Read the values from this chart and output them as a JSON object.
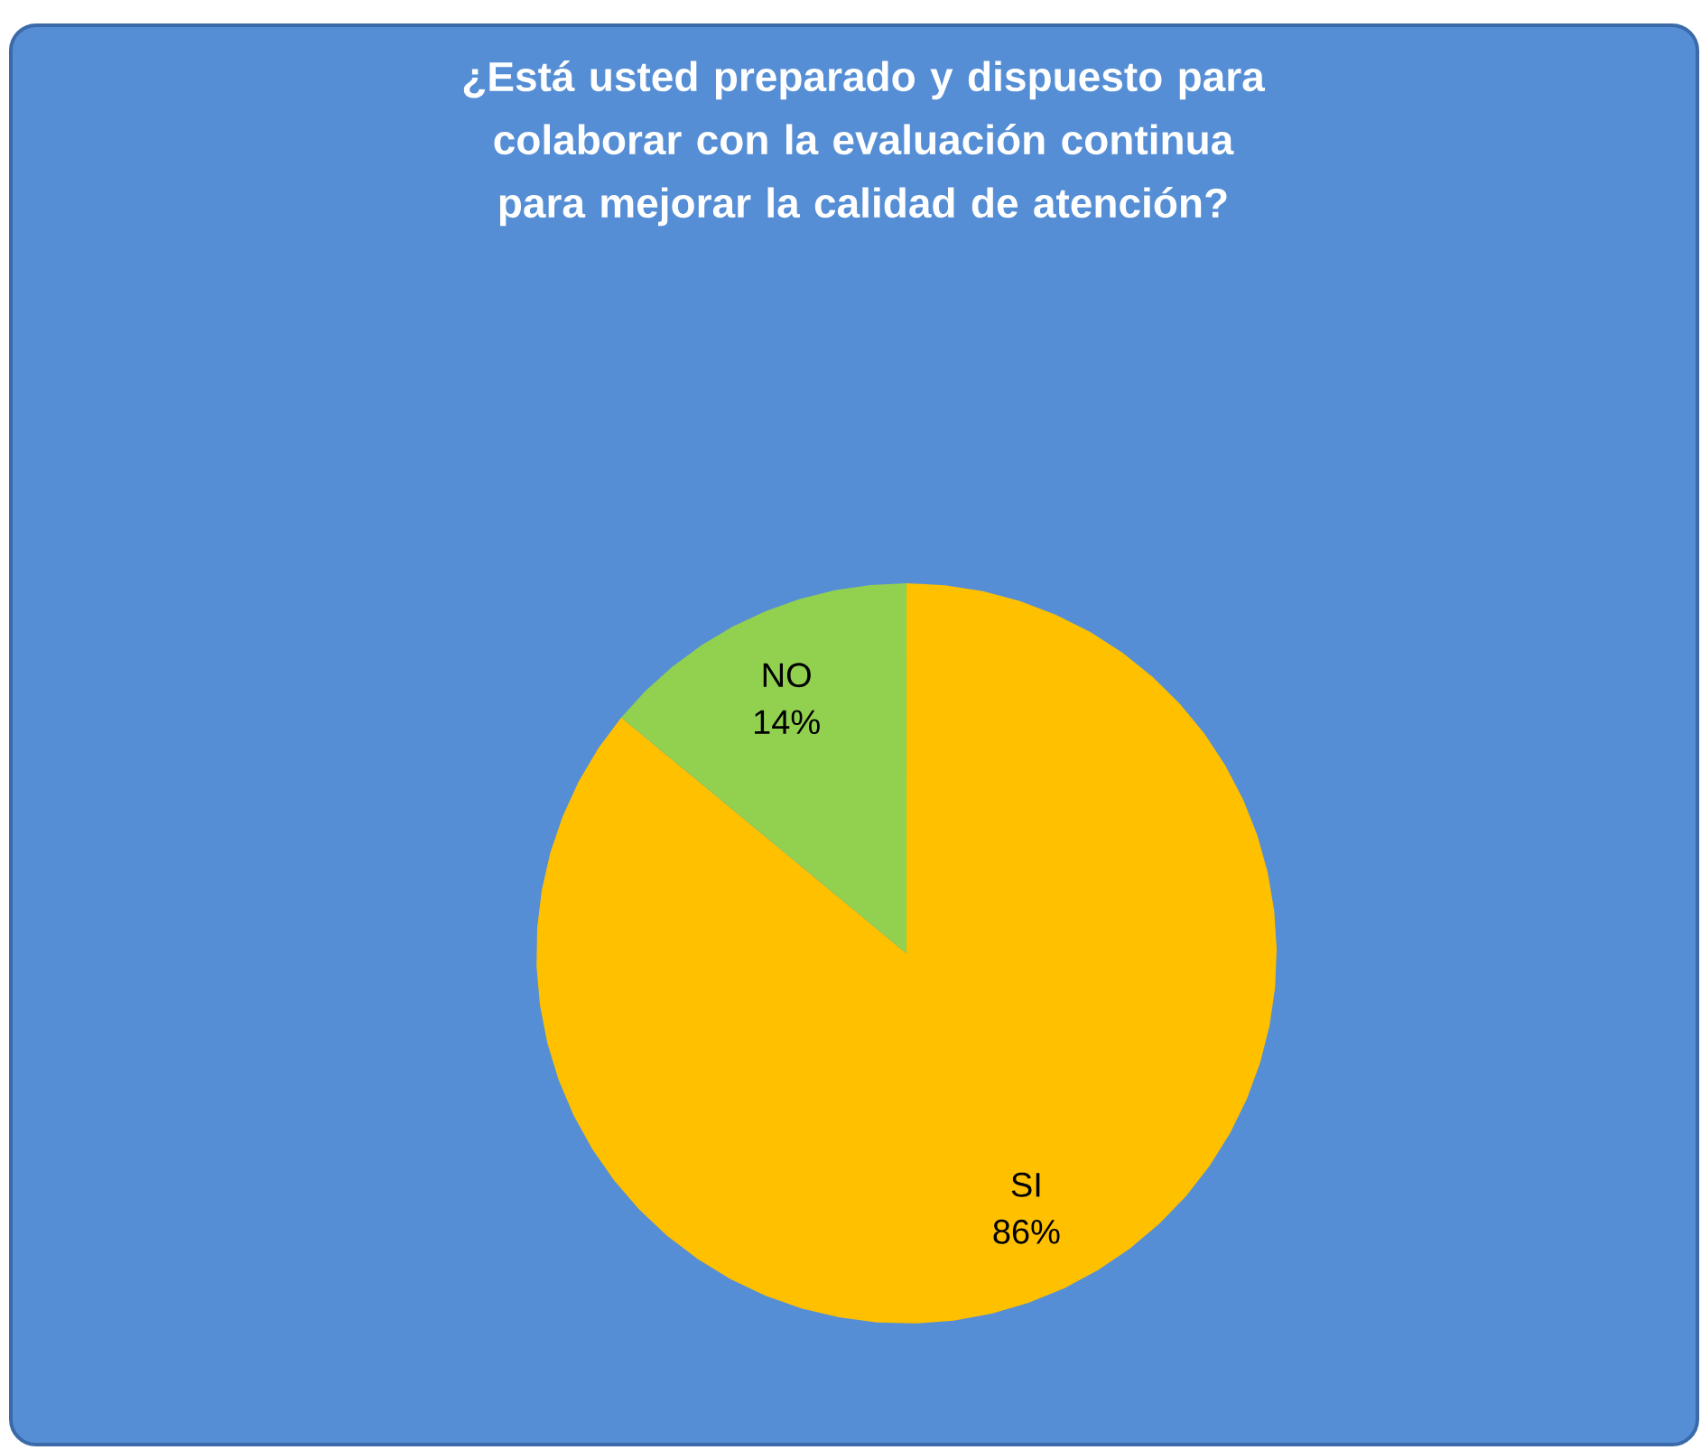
{
  "chart_data": {
    "type": "pie",
    "title": "¿Está usted preparado y dispuesto para colaborar con la evaluación continua para mejorar la calidad de atención?",
    "categories": [
      "SI",
      "NO"
    ],
    "values": [
      86,
      14
    ],
    "colors": [
      "#ffc000",
      "#92d050"
    ],
    "value_labels": [
      "86%",
      "14%"
    ]
  }
}
